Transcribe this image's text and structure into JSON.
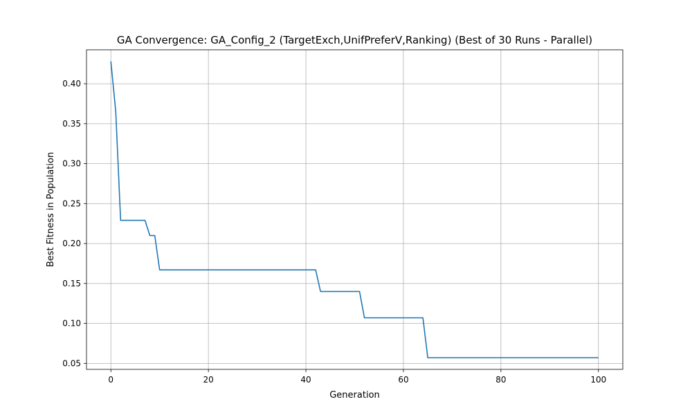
{
  "chart_data": {
    "type": "line",
    "title": "GA Convergence: GA_Config_2 (TargetExch,UnifPreferV,Ranking) (Best of 30 Runs - Parallel)",
    "xlabel": "Generation",
    "ylabel": "Best Fitness in Population",
    "xlim": [
      -5,
      105
    ],
    "ylim": [
      0.0425,
      0.4425
    ],
    "xticks": [
      0,
      20,
      40,
      60,
      80,
      100
    ],
    "xtick_labels": [
      "0",
      "20",
      "40",
      "60",
      "80",
      "100"
    ],
    "yticks": [
      0.05,
      0.1,
      0.15,
      0.2,
      0.25,
      0.3,
      0.35,
      0.4
    ],
    "ytick_labels": [
      "0.05",
      "0.10",
      "0.15",
      "0.20",
      "0.25",
      "0.30",
      "0.35",
      "0.40"
    ],
    "grid": true,
    "line_color": "#1f77b4",
    "series": [
      {
        "x": [
          0,
          1,
          2,
          7,
          8,
          9,
          10,
          42,
          43,
          51,
          52,
          64,
          65,
          100
        ],
        "values": [
          0.428,
          0.365,
          0.229,
          0.229,
          0.21,
          0.21,
          0.167,
          0.167,
          0.14,
          0.14,
          0.107,
          0.107,
          0.057,
          0.057
        ]
      }
    ]
  }
}
